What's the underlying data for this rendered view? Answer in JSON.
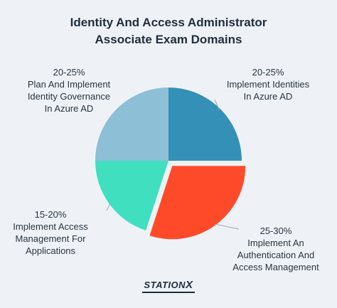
{
  "chart_data": {
    "type": "pie",
    "title_lines": [
      "Identity And Access Administrator",
      "Associate Exam Domains"
    ],
    "slices": [
      {
        "range": "20-25%",
        "label_lines": [
          "Implement Identities",
          "In Azure AD"
        ],
        "value": 25,
        "color": "#3590b8",
        "exploded": false
      },
      {
        "range": "25-30%",
        "label_lines": [
          "Implement An",
          "Authentication And",
          "Access Management"
        ],
        "value": 30,
        "color": "#ff4a2a",
        "exploded": true
      },
      {
        "range": "15-20%",
        "label_lines": [
          "Implement Access",
          "Management For",
          "Applications"
        ],
        "value": 20,
        "color": "#40dfc0",
        "exploded": false
      },
      {
        "range": "20-25%",
        "label_lines": [
          "Plan And Implement",
          "Identity Governance",
          "In Azure AD"
        ],
        "value": 25,
        "color": "#8dbfd6",
        "exploded": false
      }
    ]
  },
  "logo": {
    "text_a": "STATION",
    "text_b": "X"
  }
}
